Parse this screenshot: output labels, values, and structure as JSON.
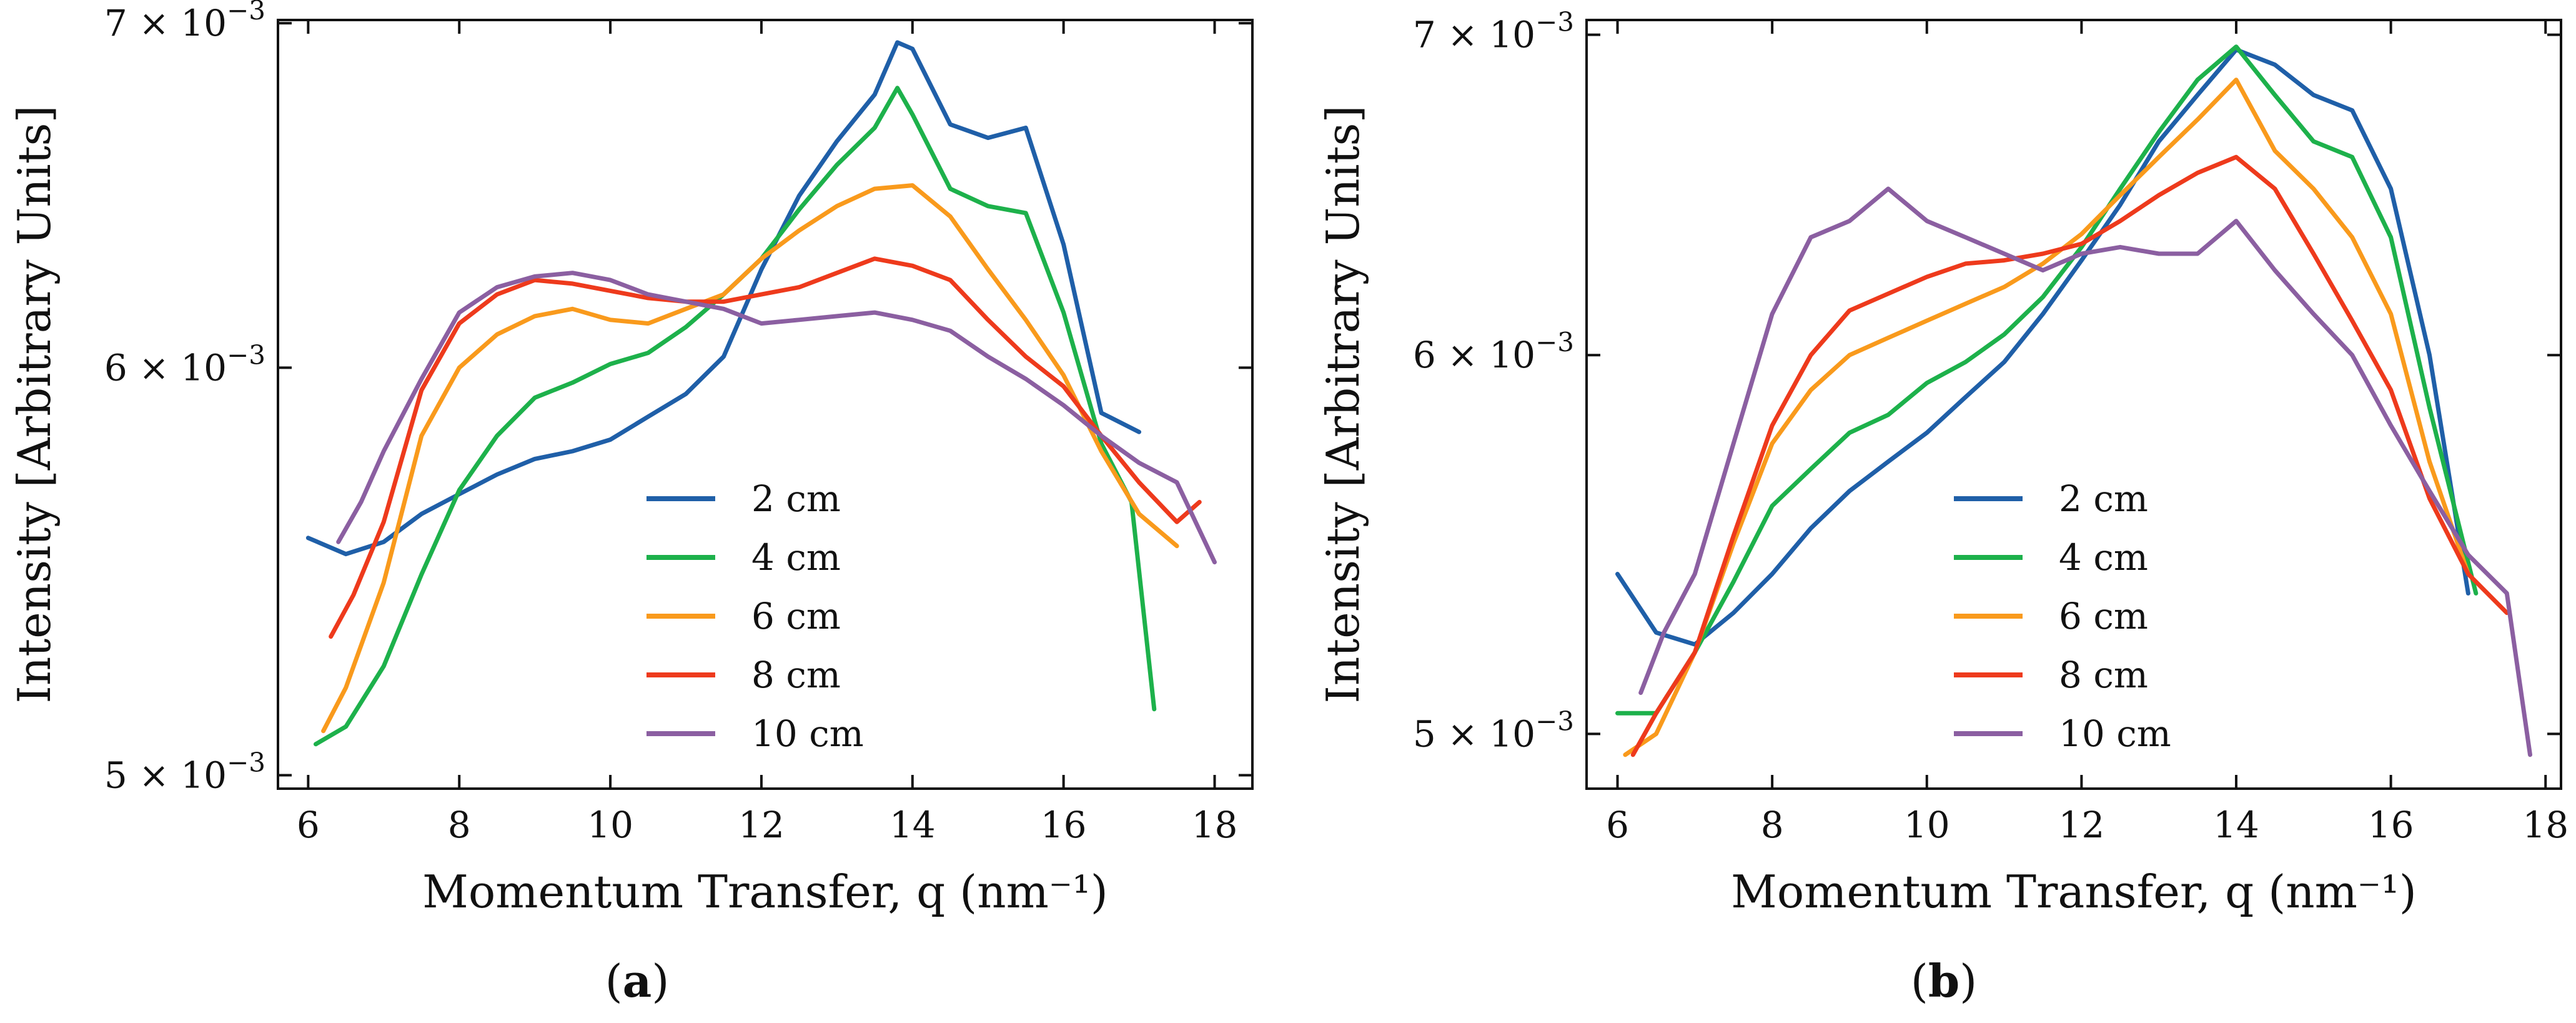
{
  "figure_title": "",
  "chart_data": [
    {
      "type": "line",
      "panel_label": "a",
      "xlabel": "Momentum Transfer, q (nm⁻¹)",
      "ylabel": "Intensity [Arbitrary Units]",
      "xlim": [
        5.6,
        18.5
      ],
      "ylim": [
        0.00497,
        0.00701
      ],
      "yscale": "log",
      "x_ticks": [
        6,
        8,
        10,
        12,
        14,
        16,
        18
      ],
      "x_tick_labels": [
        "6",
        "8",
        "10",
        "12",
        "14",
        "16",
        "18"
      ],
      "y_ticks": [
        0.005,
        0.006,
        0.007
      ],
      "y_tick_labels": [
        {
          "mantissa": "5",
          "exponent": "−3"
        },
        {
          "mantissa": "6",
          "exponent": "−3"
        },
        {
          "mantissa": "7",
          "exponent": "−3"
        }
      ],
      "legend_position": "lower-center",
      "series": [
        {
          "name": "2 cm",
          "color": "#1f5fa8",
          "x": [
            6.0,
            6.5,
            7.0,
            7.5,
            8.0,
            8.5,
            9.0,
            9.5,
            10.0,
            10.5,
            11.0,
            11.5,
            12.0,
            12.5,
            13.0,
            13.5,
            13.8,
            14.0,
            14.5,
            15.0,
            15.5,
            16.0,
            16.5,
            17.0
          ],
          "y": [
            0.00556,
            0.00552,
            0.00555,
            0.00562,
            0.00567,
            0.00572,
            0.00576,
            0.00578,
            0.00581,
            0.00587,
            0.00593,
            0.00603,
            0.00627,
            0.00648,
            0.00664,
            0.00678,
            0.00694,
            0.00692,
            0.00669,
            0.00665,
            0.00668,
            0.00634,
            0.00588,
            0.00583
          ]
        },
        {
          "name": "4 cm",
          "color": "#1db14b",
          "x": [
            6.1,
            6.5,
            7.0,
            7.5,
            8.0,
            8.5,
            9.0,
            9.5,
            10.0,
            10.5,
            11.0,
            11.5,
            12.0,
            12.5,
            13.0,
            13.5,
            13.8,
            14.0,
            14.5,
            15.0,
            15.5,
            16.0,
            16.5,
            16.9,
            17.2
          ],
          "y": [
            0.00507,
            0.00511,
            0.00525,
            0.00547,
            0.00568,
            0.00582,
            0.00592,
            0.00596,
            0.00601,
            0.00604,
            0.00611,
            0.0062,
            0.0063,
            0.00644,
            0.00657,
            0.00668,
            0.0068,
            0.00672,
            0.0065,
            0.00645,
            0.00643,
            0.00615,
            0.0058,
            0.00565,
            0.00515
          ]
        },
        {
          "name": "6 cm",
          "color": "#f99a1c",
          "x": [
            6.2,
            6.5,
            7.0,
            7.5,
            8.0,
            8.5,
            9.0,
            9.5,
            10.0,
            10.5,
            11.0,
            11.5,
            12.0,
            12.5,
            13.0,
            13.5,
            14.0,
            14.5,
            15.0,
            15.5,
            16.0,
            16.5,
            17.0,
            17.5
          ],
          "y": [
            0.0051,
            0.0052,
            0.00545,
            0.00582,
            0.006,
            0.00609,
            0.00614,
            0.00616,
            0.00613,
            0.00612,
            0.00616,
            0.0062,
            0.0063,
            0.00638,
            0.00645,
            0.0065,
            0.00651,
            0.00642,
            0.00627,
            0.00613,
            0.00598,
            0.00578,
            0.00562,
            0.00554
          ]
        },
        {
          "name": "8 cm",
          "color": "#ee3a1c",
          "x": [
            6.3,
            6.6,
            7.0,
            7.5,
            8.0,
            8.5,
            9.0,
            9.5,
            10.0,
            10.5,
            11.0,
            11.5,
            12.0,
            12.5,
            13.0,
            13.5,
            14.0,
            14.5,
            15.0,
            15.5,
            16.0,
            16.5,
            17.0,
            17.5,
            17.8
          ],
          "y": [
            0.00532,
            0.00542,
            0.0056,
            0.00594,
            0.00612,
            0.0062,
            0.00624,
            0.00623,
            0.00621,
            0.00619,
            0.00618,
            0.00618,
            0.0062,
            0.00622,
            0.00626,
            0.0063,
            0.00628,
            0.00624,
            0.00613,
            0.00603,
            0.00595,
            0.00582,
            0.0057,
            0.0056,
            0.00565
          ]
        },
        {
          "name": "10 cm",
          "color": "#8b5fa1",
          "x": [
            6.4,
            6.7,
            7.0,
            7.5,
            8.0,
            8.5,
            9.0,
            9.5,
            10.0,
            10.5,
            11.0,
            11.5,
            12.0,
            12.5,
            13.0,
            13.5,
            14.0,
            14.5,
            15.0,
            15.5,
            16.0,
            16.5,
            17.0,
            17.5,
            18.0
          ],
          "y": [
            0.00555,
            0.00565,
            0.00578,
            0.00597,
            0.00615,
            0.00622,
            0.00625,
            0.00626,
            0.00624,
            0.0062,
            0.00618,
            0.00616,
            0.00612,
            0.00613,
            0.00614,
            0.00615,
            0.00613,
            0.0061,
            0.00603,
            0.00597,
            0.0059,
            0.00582,
            0.00575,
            0.0057,
            0.0055
          ]
        }
      ]
    },
    {
      "type": "line",
      "panel_label": "b",
      "xlabel": "Momentum Transfer, q (nm⁻¹)",
      "ylabel": "Intensity [Arbitrary Units]",
      "xlim": [
        5.6,
        18.2
      ],
      "ylim": [
        0.00487,
        0.00705
      ],
      "yscale": "log",
      "x_ticks": [
        6,
        8,
        10,
        12,
        14,
        16,
        18
      ],
      "x_tick_labels": [
        "6",
        "8",
        "10",
        "12",
        "14",
        "16",
        "18"
      ],
      "y_ticks": [
        0.005,
        0.006,
        0.007
      ],
      "y_tick_labels": [
        {
          "mantissa": "5",
          "exponent": "−3"
        },
        {
          "mantissa": "6",
          "exponent": "−3"
        },
        {
          "mantissa": "7",
          "exponent": "−3"
        }
      ],
      "legend_position": "lower-center",
      "series": [
        {
          "name": "2 cm",
          "color": "#1f5fa8",
          "x": [
            6.0,
            6.5,
            7.0,
            7.5,
            8.0,
            8.5,
            9.0,
            9.5,
            10.0,
            10.5,
            11.0,
            11.5,
            12.0,
            12.5,
            13.0,
            13.5,
            14.0,
            14.5,
            15.0,
            15.5,
            16.0,
            16.5,
            17.0
          ],
          "y": [
            0.0054,
            0.00525,
            0.00522,
            0.0053,
            0.0054,
            0.00552,
            0.00562,
            0.0057,
            0.00578,
            0.00588,
            0.00598,
            0.00612,
            0.00628,
            0.00645,
            0.00665,
            0.0068,
            0.00695,
            0.0069,
            0.0068,
            0.00675,
            0.0065,
            0.006,
            0.00535
          ]
        },
        {
          "name": "4 cm",
          "color": "#1db14b",
          "x": [
            6.0,
            6.5,
            7.0,
            7.5,
            8.0,
            8.5,
            9.0,
            9.5,
            10.0,
            10.5,
            11.0,
            11.5,
            12.0,
            12.5,
            13.0,
            13.5,
            14.0,
            14.5,
            15.0,
            15.5,
            16.0,
            16.5,
            17.1
          ],
          "y": [
            0.00505,
            0.00505,
            0.0052,
            0.00538,
            0.00558,
            0.00568,
            0.00578,
            0.00583,
            0.00592,
            0.00598,
            0.00606,
            0.00617,
            0.00632,
            0.0065,
            0.00668,
            0.00685,
            0.00696,
            0.0068,
            0.00665,
            0.0066,
            0.00635,
            0.00585,
            0.00535
          ]
        },
        {
          "name": "6 cm",
          "color": "#f99a1c",
          "x": [
            6.1,
            6.5,
            7.0,
            7.5,
            8.0,
            8.5,
            9.0,
            9.5,
            10.0,
            10.5,
            11.0,
            11.5,
            12.0,
            12.5,
            13.0,
            13.5,
            14.0,
            14.5,
            15.0,
            15.5,
            16.0,
            16.5,
            17.0
          ],
          "y": [
            0.00495,
            0.005,
            0.0052,
            0.00548,
            0.00575,
            0.0059,
            0.006,
            0.00605,
            0.0061,
            0.00615,
            0.0062,
            0.00627,
            0.00636,
            0.00648,
            0.0066,
            0.00672,
            0.00685,
            0.00662,
            0.0065,
            0.00635,
            0.00612,
            0.0057,
            0.0054
          ]
        },
        {
          "name": "8 cm",
          "color": "#ee3a1c",
          "x": [
            6.2,
            6.5,
            7.0,
            7.5,
            8.0,
            8.5,
            9.0,
            9.5,
            10.0,
            10.5,
            11.0,
            11.5,
            12.0,
            12.5,
            13.0,
            13.5,
            14.0,
            14.5,
            15.0,
            15.5,
            16.0,
            16.5,
            17.0,
            17.5
          ],
          "y": [
            0.00495,
            0.00505,
            0.0052,
            0.0055,
            0.0058,
            0.006,
            0.00613,
            0.00618,
            0.00623,
            0.00627,
            0.00628,
            0.0063,
            0.00633,
            0.0064,
            0.00648,
            0.00655,
            0.0066,
            0.0065,
            0.0063,
            0.0061,
            0.0059,
            0.0056,
            0.0054,
            0.0053
          ]
        },
        {
          "name": "10 cm",
          "color": "#8b5fa1",
          "x": [
            6.3,
            6.6,
            7.0,
            7.5,
            8.0,
            8.5,
            9.0,
            9.5,
            10.0,
            10.5,
            11.0,
            11.5,
            12.0,
            12.5,
            13.0,
            13.5,
            14.0,
            14.5,
            15.0,
            15.5,
            16.0,
            16.5,
            17.0,
            17.5,
            17.8
          ],
          "y": [
            0.0051,
            0.00525,
            0.0054,
            0.00575,
            0.00612,
            0.00635,
            0.0064,
            0.0065,
            0.0064,
            0.00635,
            0.0063,
            0.00625,
            0.0063,
            0.00632,
            0.0063,
            0.0063,
            0.0064,
            0.00625,
            0.00612,
            0.006,
            0.0058,
            0.00562,
            0.00545,
            0.00535,
            0.00495
          ]
        }
      ]
    }
  ]
}
